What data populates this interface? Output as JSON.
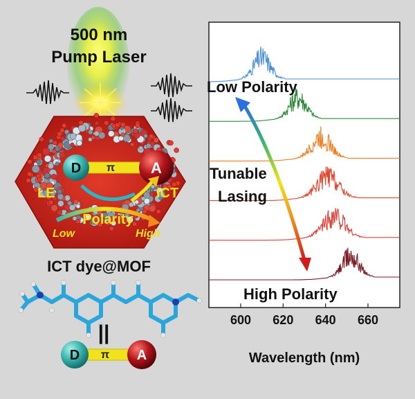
{
  "pump": {
    "line1": "500 nm",
    "line2": "Pump Laser"
  },
  "mof": {
    "donor": "D",
    "bridge": "π",
    "acceptor": "A",
    "le": "LE",
    "ict": "ICT",
    "polarity": "Polarity",
    "low": "Low",
    "high": "High",
    "caption": "ICT dye@MOF"
  },
  "equiv": "||",
  "small_dpa": {
    "donor": "D",
    "bridge": "π",
    "acceptor": "A"
  },
  "annotations": {
    "low_polarity": "Low Polarity",
    "tunable_1": "Tunable",
    "tunable_2": "Lasing",
    "high_polarity": "High Polarity"
  },
  "colors": {
    "hexagon": "#c5201a",
    "donor": "#39b3ae",
    "acceptor": "#b3141c",
    "bridge": "#f2e21c",
    "plot_bg": "#ffffff"
  },
  "chart_data": {
    "type": "line",
    "xlabel": "Wavelength (nm)",
    "ylabel": "",
    "xlim": [
      585,
      675
    ],
    "x_ticks": [
      600,
      620,
      640,
      660
    ],
    "grid": false,
    "series": [
      {
        "color": "#4a8fd6",
        "baseline_level": 6,
        "peak_center": 610,
        "peak_width": 7,
        "peak_height": 1.0
      },
      {
        "color": "#2e8b3a",
        "baseline_level": 5,
        "peak_center": 627,
        "peak_width": 7,
        "peak_height": 1.0
      },
      {
        "color": "#ef7d1f",
        "baseline_level": 4,
        "peak_center": 638,
        "peak_width": 8,
        "peak_height": 1.0
      },
      {
        "color": "#e6452c",
        "baseline_level": 3,
        "peak_center": 641,
        "peak_width": 9,
        "peak_height": 1.0
      },
      {
        "color": "#e23a32",
        "baseline_level": 2,
        "peak_center": 644,
        "peak_width": 9,
        "peak_height": 1.0
      },
      {
        "color": "#7a1a22",
        "baseline_level": 1,
        "peak_center": 652,
        "peak_width": 7,
        "peak_height": 1.0
      }
    ]
  }
}
